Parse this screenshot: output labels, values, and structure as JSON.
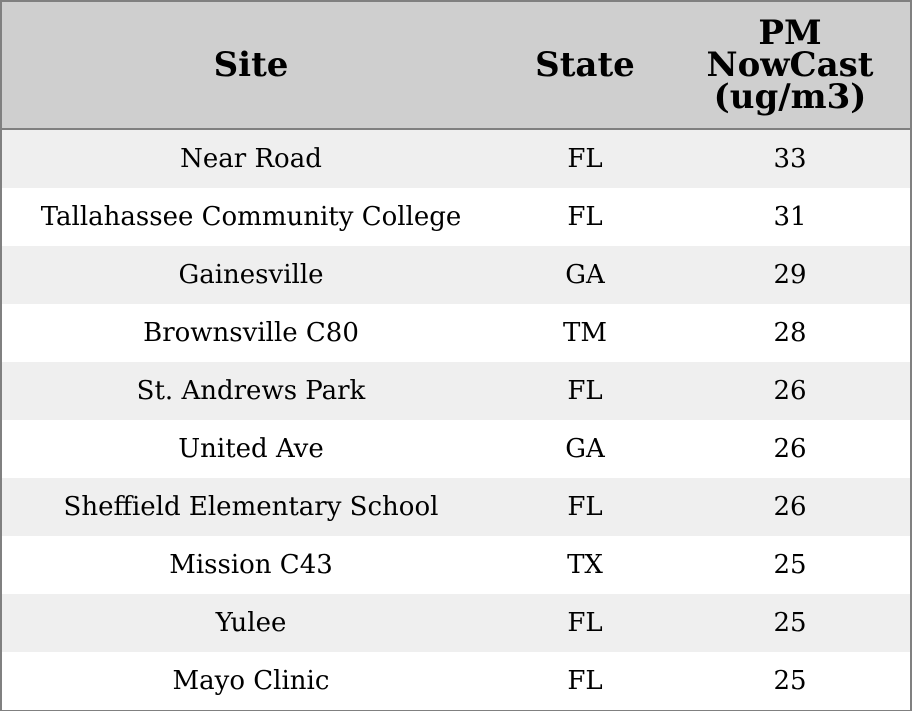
{
  "chart_data": {
    "type": "table",
    "columns": [
      "Site",
      "State",
      "PM\nNowCast\n(ug/m3)"
    ],
    "rows": [
      [
        "Near Road",
        "FL",
        "33"
      ],
      [
        "Tallahassee Community College",
        "FL",
        "31"
      ],
      [
        "Gainesville",
        "GA",
        "29"
      ],
      [
        "Brownsville C80",
        "TM",
        "28"
      ],
      [
        "St. Andrews Park",
        "FL",
        "26"
      ],
      [
        "United Ave",
        "GA",
        "26"
      ],
      [
        "Sheffield Elementary School",
        "FL",
        "26"
      ],
      [
        "Mission C43",
        "TX",
        "25"
      ],
      [
        "Yulee",
        "FL",
        "25"
      ],
      [
        "Mayo Clinic",
        "FL",
        "25"
      ]
    ],
    "colors": {
      "header_background": "#cfcfcf",
      "row_band": "#efefef",
      "border": "#808080"
    }
  }
}
